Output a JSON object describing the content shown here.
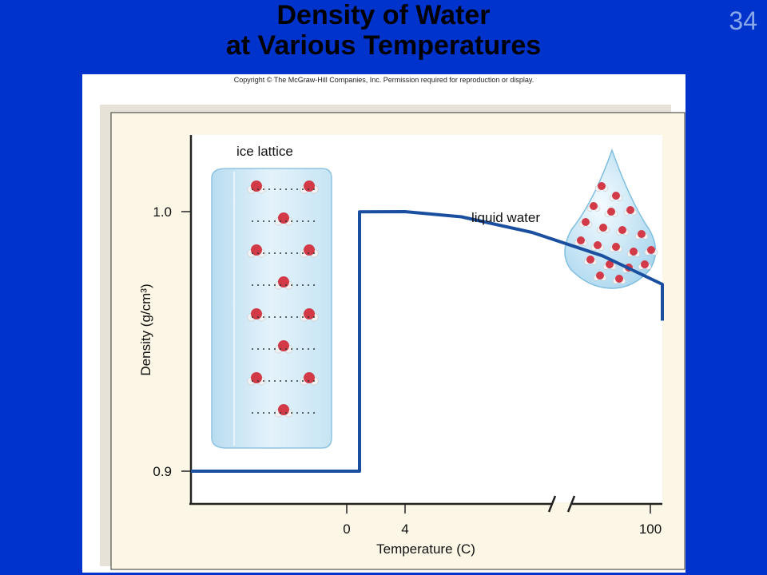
{
  "slide": {
    "title_line1": "Density of Water",
    "title_line2": "at Various Temperatures",
    "page_number": "34",
    "copyright": "Copyright © The McGraw-Hill Companies, Inc. Permission required for reproduction or display."
  },
  "chart_data": {
    "type": "line",
    "title": "",
    "xlabel": "Temperature (C)",
    "ylabel": "Density (g/cm³)",
    "x_ticks": [
      "0",
      "4",
      "100"
    ],
    "y_ticks": [
      "0.9",
      "1.0"
    ],
    "xlim": [
      -20,
      100
    ],
    "ylim": [
      0.88,
      1.03
    ],
    "axis_break": "between 4 and 100",
    "grid": false,
    "series": [
      {
        "color": "#1a4fa0",
        "points": [
          {
            "x": -20,
            "y": 0.9
          },
          {
            "x": 0,
            "y": 0.9
          },
          {
            "x": 0,
            "y": 0.9999
          },
          {
            "x": 4,
            "y": 1.0
          },
          {
            "x": 20,
            "y": 0.998
          },
          {
            "x": 40,
            "y": 0.992
          },
          {
            "x": 60,
            "y": 0.983
          },
          {
            "x": 80,
            "y": 0.972
          },
          {
            "x": 100,
            "y": 0.958
          }
        ]
      }
    ],
    "annotations": [
      {
        "text": "ice lattice"
      },
      {
        "text": "liquid water"
      }
    ]
  },
  "colors": {
    "background": "#0033cc",
    "panel_frame": "#fbf6e6",
    "curve": "#1a4fa0",
    "ice": "#cfe7f5",
    "oxygen": "#d23a48",
    "hydrogen": "#f2f2f2"
  }
}
